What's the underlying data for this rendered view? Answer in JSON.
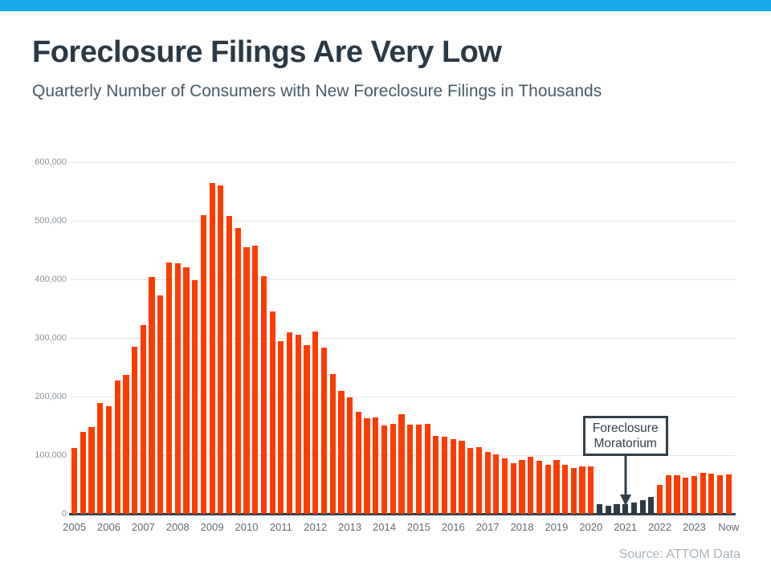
{
  "page": {
    "accent_bar_color": "#17A9EB"
  },
  "header": {
    "title": "Foreclosure Filings Are Very Low",
    "subtitle": "Quarterly Number of Consumers with New Foreclosure Filings in Thousands"
  },
  "footer": {
    "source": "Source: ATTOM Data"
  },
  "chart_data": {
    "type": "bar",
    "title": "Foreclosure Filings Are Very Low",
    "xlabel": "",
    "ylabel": "",
    "ylim": [
      0,
      600000
    ],
    "grid": true,
    "legend": false,
    "bar_color": "#FB3D02",
    "moratorium_bar_color": "#2E3A46",
    "y_ticks": [
      {
        "value": 0,
        "label": "0"
      },
      {
        "value": 100000,
        "label": "100,000"
      },
      {
        "value": 200000,
        "label": "200,000"
      },
      {
        "value": 300000,
        "label": "300,000"
      },
      {
        "value": 400000,
        "label": "400,000"
      },
      {
        "value": 500000,
        "label": "500,000"
      },
      {
        "value": 600000,
        "label": "600,000"
      }
    ],
    "series": [
      {
        "year": "2005",
        "values": [
          112000,
          140000,
          148000,
          189000
        ]
      },
      {
        "year": "2006",
        "values": [
          184000,
          228000,
          237000,
          285000
        ]
      },
      {
        "year": "2007",
        "values": [
          322000,
          404000,
          372000,
          429000
        ]
      },
      {
        "year": "2008",
        "values": [
          428000,
          420000,
          398000,
          510000
        ]
      },
      {
        "year": "2009",
        "values": [
          565000,
          560000,
          508000,
          487000
        ]
      },
      {
        "year": "2010",
        "values": [
          455000,
          458000,
          405000,
          345000
        ]
      },
      {
        "year": "2011",
        "values": [
          294000,
          310000,
          305000,
          287000
        ]
      },
      {
        "year": "2012",
        "values": [
          311000,
          284000,
          239000,
          209000
        ]
      },
      {
        "year": "2013",
        "values": [
          199000,
          174000,
          163000,
          164000
        ]
      },
      {
        "year": "2014",
        "values": [
          151000,
          154000,
          170000,
          152000
        ]
      },
      {
        "year": "2015",
        "values": [
          152000,
          153000,
          133000,
          132000
        ]
      },
      {
        "year": "2016",
        "values": [
          128000,
          125000,
          112000,
          114000
        ]
      },
      {
        "year": "2017",
        "values": [
          105000,
          102000,
          94000,
          86000
        ]
      },
      {
        "year": "2018",
        "values": [
          92000,
          97000,
          91000,
          84000
        ]
      },
      {
        "year": "2019",
        "values": [
          92000,
          84000,
          78000,
          81000
        ]
      },
      {
        "year": "2020",
        "values": [
          81000,
          17000,
          14000,
          17000
        ]
      },
      {
        "year": "2021",
        "values": [
          16000,
          19000,
          23000,
          29000
        ]
      },
      {
        "year": "2022",
        "values": [
          50000,
          66000,
          66000,
          62000
        ]
      },
      {
        "year": "2023",
        "values": [
          64000,
          70000,
          69000,
          66000
        ]
      },
      {
        "year": "Now",
        "values": [
          67000
        ]
      }
    ],
    "moratorium_quarters": [
      "2020 Q2",
      "2020 Q3",
      "2020 Q4",
      "2021 Q1",
      "2021 Q2",
      "2021 Q3",
      "2021 Q4"
    ],
    "annotation": {
      "lines": [
        "Foreclosure",
        "Moratorium"
      ],
      "target": "2021 Q1"
    }
  }
}
